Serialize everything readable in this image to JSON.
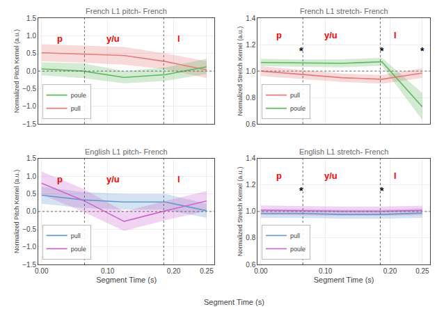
{
  "xlabel": "Segment Time (s)",
  "chart_data": [
    {
      "type": "line",
      "title": "French L1 pitch- French",
      "ylabel": "Normalized Pitch Kernel (a.u.)",
      "x": [
        0.0,
        0.0625,
        0.125,
        0.1875,
        0.25
      ],
      "series": [
        {
          "name": "pull",
          "color": "#e87a7a",
          "values": [
            0.52,
            0.48,
            0.44,
            0.27,
            0.03
          ],
          "lower": [
            0.28,
            0.24,
            0.18,
            0.05,
            -0.2
          ],
          "upper": [
            0.76,
            0.72,
            0.68,
            0.5,
            0.28
          ]
        },
        {
          "name": "poule",
          "color": "#5cb85c",
          "values": [
            0.06,
            0.0,
            -0.18,
            -0.1,
            0.12
          ],
          "lower": [
            -0.12,
            -0.2,
            -0.35,
            -0.28,
            -0.08
          ],
          "upper": [
            0.25,
            0.22,
            0.0,
            0.1,
            0.35
          ]
        }
      ],
      "xlim": [
        -0.005,
        0.262
      ],
      "ylim": [
        -1.5,
        1.5
      ],
      "xticks": [
        0.0,
        0.1,
        0.2,
        0.25
      ],
      "yticks": [
        {
          "value": -1.5,
          "label": "−1.5"
        },
        {
          "value": -1.0,
          "label": "−1.0"
        },
        {
          "value": -0.5,
          "label": "−0.5"
        },
        {
          "value": 0.0,
          "label": "0.0"
        },
        {
          "value": 0.5,
          "label": "0.5"
        },
        {
          "value": 1.0,
          "label": "1.0"
        },
        {
          "value": 1.5,
          "label": "1.5"
        }
      ],
      "grid": true,
      "legend": "lower left",
      "tick_labels": "y",
      "hline": 0.0,
      "vlines": [
        0.065,
        0.185
      ],
      "annotations": [
        {
          "text": "p",
          "x": 0.028,
          "y": 1.11
        },
        {
          "text": "y/u",
          "x": 0.108,
          "y": 1.11
        },
        {
          "text": "l",
          "x": 0.208,
          "y": 1.11
        }
      ],
      "stars": []
    },
    {
      "type": "line",
      "title": "French L1 stretch- French",
      "ylabel": "Normalized Stretch Kernel (a.u.)",
      "x": [
        0.0,
        0.0625,
        0.125,
        0.1875,
        0.25
      ],
      "series": [
        {
          "name": "pull",
          "color": "#e87a7a",
          "values": [
            1.0,
            0.975,
            0.95,
            0.938,
            0.985
          ],
          "lower": [
            0.962,
            0.942,
            0.918,
            0.905,
            0.948
          ],
          "upper": [
            1.038,
            1.008,
            0.982,
            0.97,
            1.022
          ]
        },
        {
          "name": "poule",
          "color": "#5cb85c",
          "values": [
            1.065,
            1.06,
            1.058,
            1.07,
            0.73
          ],
          "lower": [
            1.038,
            1.033,
            1.028,
            1.04,
            0.63
          ],
          "upper": [
            1.092,
            1.087,
            1.088,
            1.1,
            0.835
          ]
        }
      ],
      "xlim": [
        -0.005,
        0.262
      ],
      "ylim": [
        0.6,
        1.4
      ],
      "xticks": [
        0.0,
        0.1,
        0.2,
        0.25
      ],
      "yticks": [
        0.6,
        0.8,
        {
          "value": 1.0,
          "label": "1.0"
        },
        1.2,
        1.4
      ],
      "grid": true,
      "legend": "lower left",
      "tick_labels": "y",
      "hline": 1.0,
      "vlines": [
        0.065,
        0.185
      ],
      "annotations": [
        {
          "text": "p",
          "x": 0.028,
          "y": 1.32
        },
        {
          "text": "y/u",
          "x": 0.108,
          "y": 1.32
        },
        {
          "text": "l",
          "x": 0.208,
          "y": 1.32
        }
      ],
      "stars": [
        {
          "text": "*",
          "x": 0.0625,
          "y": 1.155
        },
        {
          "text": "*",
          "x": 0.1875,
          "y": 1.155
        },
        {
          "text": "*",
          "x": 0.25,
          "y": 1.155
        }
      ]
    },
    {
      "type": "line",
      "title": "English L1 pitch- French",
      "xlabel": "Segment Time (s)",
      "ylabel": "Normalized Pitch Kernel (a.u.)",
      "x": [
        0.0,
        0.0625,
        0.125,
        0.1875,
        0.25
      ],
      "series": [
        {
          "name": "pull",
          "color": "#6699cc",
          "values": [
            0.46,
            0.33,
            0.27,
            0.27,
            0.02
          ],
          "lower": [
            0.22,
            0.1,
            0.05,
            0.05,
            -0.18
          ],
          "upper": [
            0.7,
            0.55,
            0.5,
            0.5,
            0.22
          ]
        },
        {
          "name": "poule",
          "color": "#cc66cc",
          "values": [
            0.8,
            0.32,
            -0.28,
            0.02,
            0.3
          ],
          "lower": [
            0.48,
            0.0,
            -0.55,
            -0.25,
            0.02
          ],
          "upper": [
            1.13,
            0.65,
            0.0,
            0.3,
            0.58
          ]
        }
      ],
      "xlim": [
        -0.005,
        0.262
      ],
      "ylim": [
        -1.5,
        1.5
      ],
      "xticks": [
        {
          "value": 0.0,
          "label": "0.00"
        },
        {
          "value": 0.1,
          "label": "0.10"
        },
        {
          "value": 0.2,
          "label": "0.20"
        },
        0.25
      ],
      "yticks": [
        {
          "value": -1.5,
          "label": "−1.5"
        },
        {
          "value": -1.0,
          "label": "−1.0"
        },
        {
          "value": -0.5,
          "label": "−0.5"
        },
        {
          "value": 0.0,
          "label": "0.0"
        },
        {
          "value": 0.5,
          "label": "0.5"
        },
        {
          "value": 1.0,
          "label": "1.0"
        },
        {
          "value": 1.5,
          "label": "1.5"
        }
      ],
      "grid": true,
      "legend": "lower left",
      "hline": 0.0,
      "vlines": [
        0.065,
        0.185
      ],
      "annotations": [
        {
          "text": "p",
          "x": 0.028,
          "y": 1.11
        },
        {
          "text": "y/u",
          "x": 0.108,
          "y": 1.11
        },
        {
          "text": "l",
          "x": 0.208,
          "y": 1.11
        }
      ],
      "stars": []
    },
    {
      "type": "line",
      "title": "English L1 stretch- French",
      "xlabel": "Segment Time (s)",
      "ylabel": "Normalized Stretch Kernel (a.u.)",
      "x": [
        0.0,
        0.0625,
        0.125,
        0.1875,
        0.25
      ],
      "series": [
        {
          "name": "pull",
          "color": "#6699cc",
          "values": [
            0.985,
            0.985,
            0.978,
            0.978,
            0.988
          ],
          "lower": [
            0.952,
            0.952,
            0.945,
            0.945,
            0.952
          ],
          "upper": [
            1.018,
            1.018,
            1.012,
            1.012,
            1.024
          ]
        },
        {
          "name": "poule",
          "color": "#cc66cc",
          "values": [
            1.01,
            1.005,
            1.002,
            1.002,
            1.008
          ],
          "lower": [
            0.975,
            0.97,
            0.968,
            0.968,
            0.972
          ],
          "upper": [
            1.045,
            1.04,
            1.038,
            1.038,
            1.044
          ]
        }
      ],
      "xlim": [
        -0.005,
        0.262
      ],
      "ylim": [
        0.6,
        1.4
      ],
      "xticks": [
        {
          "value": 0.0,
          "label": "0.00"
        },
        {
          "value": 0.1,
          "label": "0.10"
        },
        {
          "value": 0.2,
          "label": "0.20"
        },
        0.25
      ],
      "yticks": [
        0.6,
        0.8,
        {
          "value": 1.0,
          "label": "1.0"
        },
        1.2,
        1.4
      ],
      "grid": true,
      "legend": "lower left",
      "hline": 1.0,
      "vlines": [
        0.065,
        0.185
      ],
      "annotations": [
        {
          "text": "p",
          "x": 0.028,
          "y": 1.32
        },
        {
          "text": "y/u",
          "x": 0.108,
          "y": 1.32
        },
        {
          "text": "l",
          "x": 0.208,
          "y": 1.32
        }
      ],
      "stars": [
        {
          "text": "*",
          "x": 0.0625,
          "y": 1.155
        },
        {
          "text": "*",
          "x": 0.1875,
          "y": 1.155
        }
      ]
    }
  ]
}
